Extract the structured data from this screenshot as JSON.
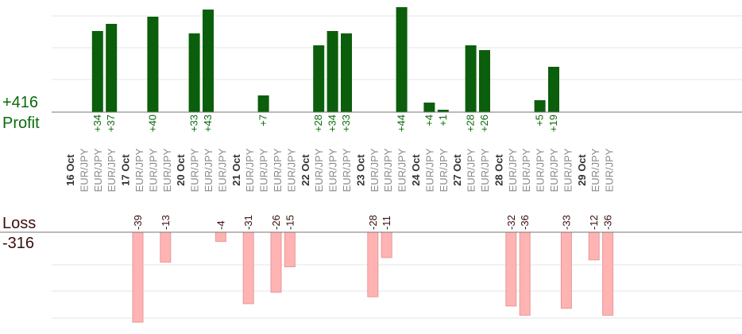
{
  "summary": {
    "profit_total": "+416",
    "profit_label": "Profit",
    "loss_label": "Loss",
    "loss_total": "-316"
  },
  "colors": {
    "profit": "#0a6b0a",
    "profit_bar": "#0b5e0b",
    "loss_bar": "#ffb3b3",
    "loss_text": "#3a0d0d",
    "axis": "#777777",
    "grid": "#e6e6e6"
  },
  "chart_data": {
    "type": "bar",
    "title": "",
    "grid": true,
    "profit_axis_max": 44,
    "loss_axis_max": 39,
    "columns": [
      {
        "date": "16 Oct"
      },
      {
        "symbol": "EUR/JPY",
        "value": 0
      },
      {
        "symbol": "EUR/JPY",
        "value": 34
      },
      {
        "symbol": "EUR/JPY",
        "value": 37
      },
      {
        "date": "17 Oct"
      },
      {
        "symbol": "EUR/JPY",
        "value": -39
      },
      {
        "symbol": "EUR/JPY",
        "value": 40
      },
      {
        "symbol": "EUR/JPY",
        "value": -13
      },
      {
        "date": "20 Oct"
      },
      {
        "symbol": "EUR/JPY",
        "value": 33
      },
      {
        "symbol": "EUR/JPY",
        "value": 43
      },
      {
        "symbol": "EUR/JPY",
        "value": -4
      },
      {
        "date": "21 Oct"
      },
      {
        "symbol": "EUR/JPY",
        "value": -31
      },
      {
        "symbol": "EUR/JPY",
        "value": 7
      },
      {
        "symbol": "EUR/JPY",
        "value": -26
      },
      {
        "symbol": "EUR/JPY",
        "value": -15
      },
      {
        "date": "22 Oct"
      },
      {
        "symbol": "EUR/JPY",
        "value": 28
      },
      {
        "symbol": "EUR/JPY",
        "value": 34
      },
      {
        "symbol": "EUR/JPY",
        "value": 33
      },
      {
        "date": "23 Oct"
      },
      {
        "symbol": "EUR/JPY",
        "value": -28
      },
      {
        "symbol": "EUR/JPY",
        "value": -11
      },
      {
        "symbol": "EUR/JPY",
        "value": 44
      },
      {
        "date": "24 Oct"
      },
      {
        "symbol": "EUR/JPY",
        "value": 4
      },
      {
        "symbol": "EUR/JPY",
        "value": 1
      },
      {
        "date": "27 Oct"
      },
      {
        "symbol": "EUR/JPY",
        "value": 28
      },
      {
        "symbol": "EUR/JPY",
        "value": 26
      },
      {
        "date": "28 Oct"
      },
      {
        "symbol": "EUR/JPY",
        "value": -32
      },
      {
        "symbol": "EUR/JPY",
        "value": -36
      },
      {
        "symbol": "EUR/JPY",
        "value": 5
      },
      {
        "symbol": "EUR/JPY",
        "value": 19
      },
      {
        "symbol": "EUR/JPY",
        "value": -33
      },
      {
        "date": "29 Oct"
      },
      {
        "symbol": "EUR/JPY",
        "value": -12
      },
      {
        "symbol": "EUR/JPY",
        "value": -36
      }
    ]
  }
}
